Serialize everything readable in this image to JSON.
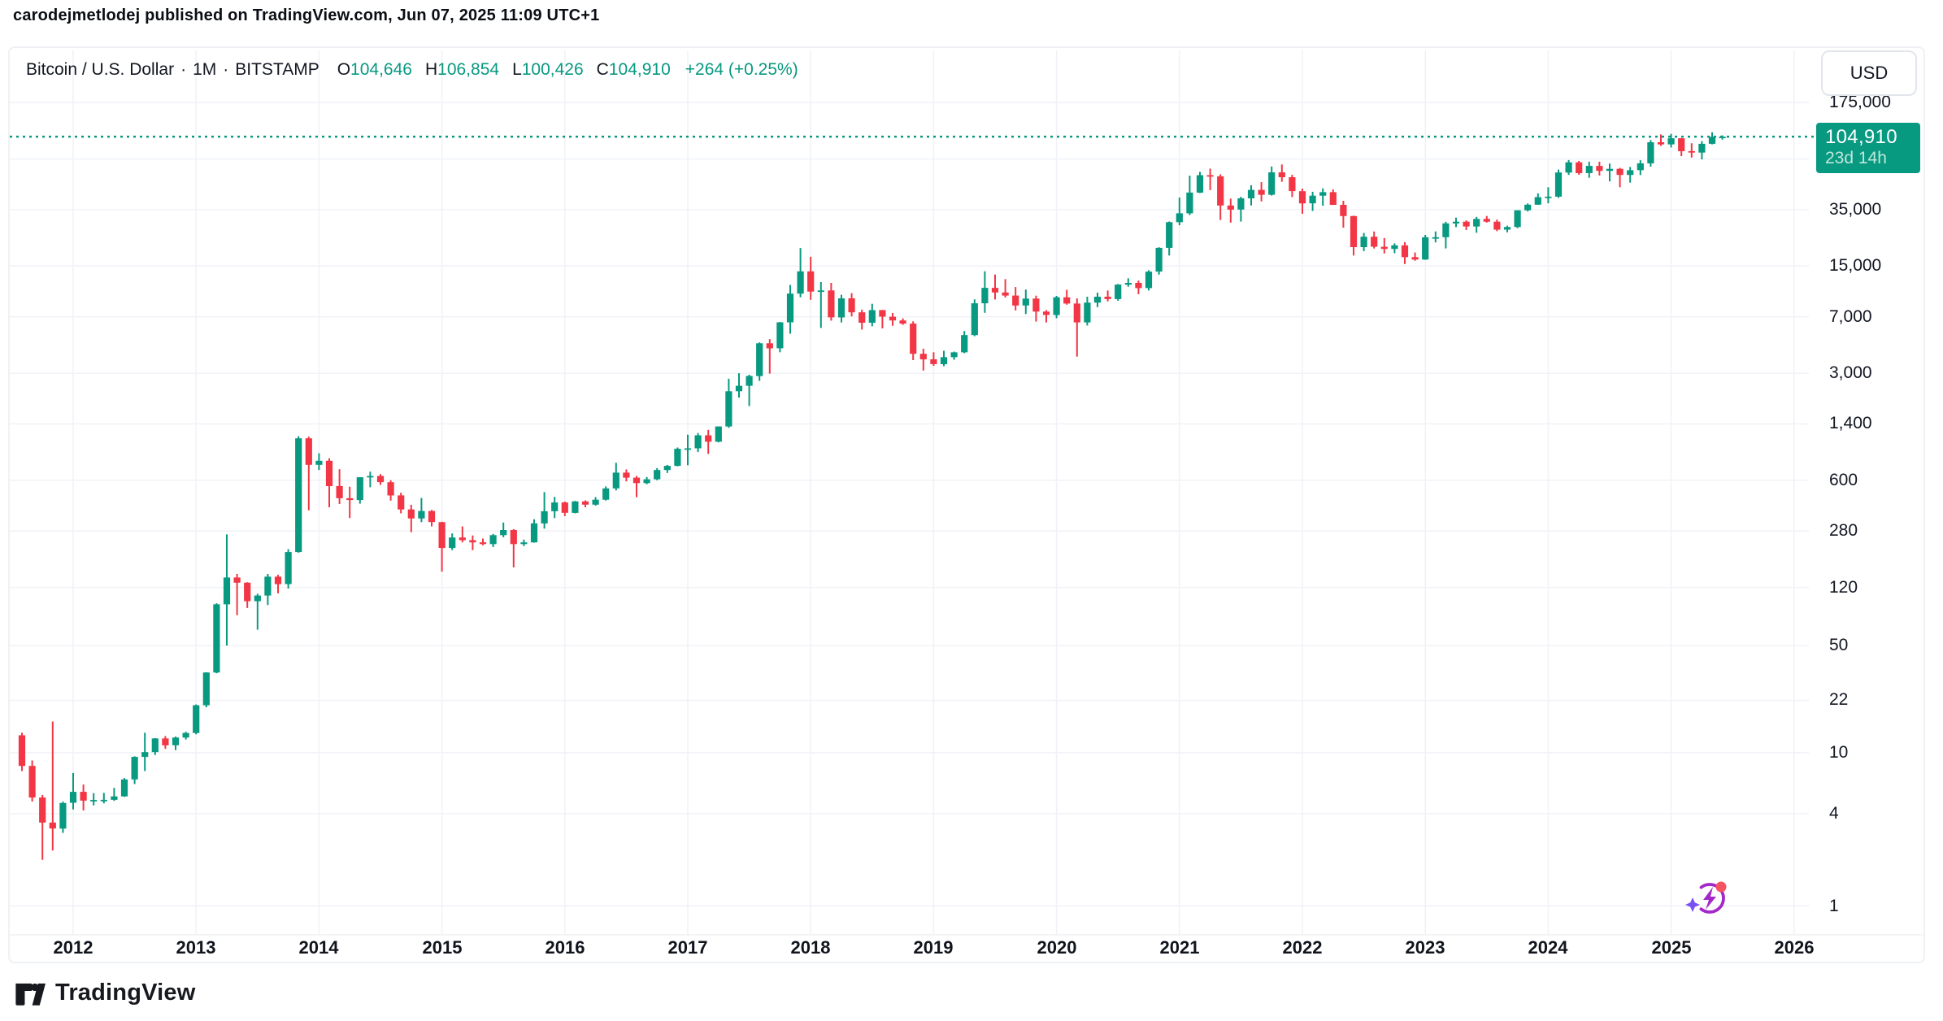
{
  "header": {
    "published_line": "carodejmetlodej published on TradingView.com, Jun 07, 2025 11:09 UTC+1"
  },
  "legend": {
    "symbol_title": "Bitcoin / U.S. Dollar",
    "separator": "·",
    "interval": "1M",
    "exchange": "BITSTAMP",
    "open_label": "O",
    "open_value": "104,646",
    "high_label": "H",
    "high_value": "106,854",
    "low_label": "L",
    "low_value": "100,426",
    "close_label": "C",
    "close_value": "104,910",
    "change": "+264 (+0.25%)"
  },
  "price_axis": {
    "currency_button": "USD",
    "ticks": [
      {
        "label": "175,000",
        "price": 175000
      },
      {
        "label": "35,000",
        "price": 35000
      },
      {
        "label": "15,000",
        "price": 15000
      },
      {
        "label": "7,000",
        "price": 7000
      },
      {
        "label": "3,000",
        "price": 3000
      },
      {
        "label": "1,400",
        "price": 1400
      },
      {
        "label": "600",
        "price": 600
      },
      {
        "label": "280",
        "price": 280
      },
      {
        "label": "120",
        "price": 120
      },
      {
        "label": "50",
        "price": 50
      },
      {
        "label": "22",
        "price": 22
      },
      {
        "label": "10",
        "price": 10
      },
      {
        "label": "4",
        "price": 4
      },
      {
        "label": "1",
        "price": 1
      }
    ],
    "last_price_label": "104,910",
    "countdown": "23d 14h"
  },
  "time_axis": {
    "years": [
      2012,
      2013,
      2014,
      2015,
      2016,
      2017,
      2018,
      2019,
      2020,
      2021,
      2022,
      2023,
      2024,
      2025,
      2026
    ]
  },
  "footer": {
    "brand": "TradingView"
  },
  "colors": {
    "up": "#089981",
    "down": "#F23645",
    "accent": "#089981",
    "axis_text": "#131722",
    "grid": "#f0f2f7",
    "badge_bg": "#089981",
    "badge_countdown": "#bfe7dc",
    "dotted_line": "#089981"
  },
  "chart_data": {
    "type": "candlestick",
    "title": "Bitcoin / U.S. Dollar",
    "symbol": "BTCUSD",
    "exchange": "BITSTAMP",
    "timeframe": "1M",
    "y_scale": "log",
    "currency": "USD",
    "start_month": "2011-08",
    "last_close": 104910,
    "y_ticks": [
      175000,
      35000,
      15000,
      7000,
      3000,
      1400,
      600,
      280,
      120,
      50,
      22,
      10,
      4,
      1
    ],
    "y_gridline_prices": [
      175000,
      75000,
      35000,
      15000,
      7000,
      3000,
      1400,
      600,
      280,
      120,
      50,
      22,
      10,
      4,
      1
    ],
    "x_years": [
      2012,
      2013,
      2014,
      2015,
      2016,
      2017,
      2018,
      2019,
      2020,
      2021,
      2022,
      2023,
      2024,
      2025,
      2026
    ],
    "candles_format": [
      "open",
      "high",
      "low",
      "close"
    ],
    "candles": [
      [
        13.0,
        13.5,
        7.6,
        8.2
      ],
      [
        8.2,
        8.9,
        4.8,
        5.1
      ],
      [
        5.1,
        5.3,
        2.0,
        3.5
      ],
      [
        3.5,
        16.0,
        2.3,
        3.2
      ],
      [
        3.2,
        4.8,
        3.0,
        4.7
      ],
      [
        4.72,
        7.38,
        4.27,
        5.56
      ],
      [
        5.56,
        6.2,
        4.2,
        4.87
      ],
      [
        4.87,
        5.45,
        4.53,
        4.92
      ],
      [
        4.92,
        5.47,
        4.68,
        4.93
      ],
      [
        4.93,
        5.9,
        4.85,
        5.19
      ],
      [
        5.19,
        6.83,
        5.15,
        6.7
      ],
      [
        6.7,
        9.48,
        6.25,
        9.4
      ],
      [
        9.4,
        13.5,
        7.6,
        10.1
      ],
      [
        10.1,
        12.48,
        9.66,
        12.4
      ],
      [
        12.4,
        12.85,
        10.6,
        11.18
      ],
      [
        11.18,
        12.75,
        10.4,
        12.56
      ],
      [
        12.56,
        13.7,
        12.2,
        13.45
      ],
      [
        13.45,
        20.65,
        13.2,
        20.41
      ],
      [
        20.41,
        33.5,
        19.8,
        33.38
      ],
      [
        33.38,
        94.5,
        33.0,
        93.03
      ],
      [
        93.03,
        266.0,
        50.1,
        139.23
      ],
      [
        139.23,
        146.93,
        79.0,
        128.8
      ],
      [
        128.8,
        129.78,
        88.05,
        97.5
      ],
      [
        97.5,
        109.0,
        63.53,
        106.21
      ],
      [
        106.21,
        147.0,
        92.0,
        141.0
      ],
      [
        141.0,
        145.0,
        109.71,
        126.0
      ],
      [
        126.0,
        213.0,
        118.0,
        204.0
      ],
      [
        204.0,
        1163.0,
        202.0,
        1127.0
      ],
      [
        1127.0,
        1156.0,
        382.0,
        757.0
      ],
      [
        757,
        900,
        700,
        805
      ],
      [
        805,
        835,
        400,
        550
      ],
      [
        550,
        709,
        420,
        458
      ],
      [
        458,
        545,
        340,
        446
      ],
      [
        446,
        629,
        422,
        628
      ],
      [
        628,
        683,
        540,
        640
      ],
      [
        640,
        658,
        560,
        583
      ],
      [
        583,
        600,
        442,
        478
      ],
      [
        478,
        498,
        365,
        387
      ],
      [
        387,
        415,
        275,
        338
      ],
      [
        338,
        460,
        320,
        378
      ],
      [
        378,
        384,
        300,
        320
      ],
      [
        320,
        322,
        152,
        217
      ],
      [
        217,
        270,
        210,
        254
      ],
      [
        254,
        300,
        236,
        244
      ],
      [
        244,
        262,
        210,
        236
      ],
      [
        236,
        250,
        226,
        230
      ],
      [
        230,
        268,
        220,
        263
      ],
      [
        263,
        318,
        255,
        284
      ],
      [
        284,
        288,
        162,
        230
      ],
      [
        230,
        246,
        223,
        236
      ],
      [
        236,
        334,
        235,
        314
      ],
      [
        314,
        502,
        290,
        377
      ],
      [
        377,
        467,
        340,
        430
      ],
      [
        430,
        436,
        350,
        368
      ],
      [
        368,
        440,
        365,
        437
      ],
      [
        437,
        444,
        400,
        416
      ],
      [
        416,
        466,
        410,
        448
      ],
      [
        448,
        547,
        442,
        531
      ],
      [
        531,
        780,
        515,
        673
      ],
      [
        673,
        706,
        590,
        624
      ],
      [
        624,
        640,
        465,
        575
      ],
      [
        575,
        630,
        565,
        609
      ],
      [
        609,
        720,
        600,
        700
      ],
      [
        700,
        755,
        670,
        745
      ],
      [
        745,
        982,
        740,
        963
      ],
      [
        963,
        1191,
        752,
        970
      ],
      [
        970,
        1220,
        918,
        1179
      ],
      [
        1179,
        1280,
        891,
        1071
      ],
      [
        1071,
        1347,
        1060,
        1347
      ],
      [
        1347,
        2760,
        1320,
        2286
      ],
      [
        2286,
        3000,
        2076,
        2480
      ],
      [
        2480,
        2930,
        1830,
        2875
      ],
      [
        2875,
        4765,
        2670,
        4703
      ],
      [
        4703,
        5000,
        2980,
        4360
      ],
      [
        4360,
        6470,
        4110,
        6440
      ],
      [
        6440,
        11300,
        5430,
        9916
      ],
      [
        9916,
        19666,
        9380,
        13850
      ],
      [
        13850,
        17234,
        9035,
        10221
      ],
      [
        10221,
        11786,
        5920,
        10397
      ],
      [
        10397,
        11650,
        6600,
        6938
      ],
      [
        6938,
        9745,
        6425,
        9240
      ],
      [
        9240,
        9990,
        7040,
        7485
      ],
      [
        7485,
        7790,
        5780,
        6404
      ],
      [
        6404,
        8507,
        6070,
        7735
      ],
      [
        7735,
        7760,
        5880,
        7011
      ],
      [
        7011,
        7410,
        6120,
        6626
      ],
      [
        6626,
        6830,
        6200,
        6317
      ],
      [
        6317,
        6540,
        3652,
        4017
      ],
      [
        4017,
        4330,
        3122,
        3693
      ],
      [
        3693,
        4110,
        3350,
        3437
      ],
      [
        3437,
        4200,
        3330,
        3816
      ],
      [
        3816,
        4150,
        3670,
        4105
      ],
      [
        4105,
        5650,
        4050,
        5320
      ],
      [
        5320,
        9090,
        5230,
        8574
      ],
      [
        8574,
        13880,
        7430,
        10817
      ],
      [
        10817,
        13200,
        9080,
        10085
      ],
      [
        10085,
        12325,
        9350,
        9630
      ],
      [
        9630,
        10950,
        7700,
        8293
      ],
      [
        8293,
        10540,
        7293,
        9199
      ],
      [
        9199,
        9620,
        6515,
        7569
      ],
      [
        7569,
        7740,
        6430,
        7196
      ],
      [
        7196,
        9580,
        6850,
        9388
      ],
      [
        9388,
        10500,
        8400,
        8543
      ],
      [
        8543,
        9220,
        3850,
        6438
      ],
      [
        6438,
        9460,
        6140,
        8658
      ],
      [
        8658,
        10067,
        8100,
        9461
      ],
      [
        9461,
        10380,
        8830,
        9137
      ],
      [
        9137,
        11450,
        8900,
        11351
      ],
      [
        11351,
        12486,
        11000,
        11655
      ],
      [
        11655,
        12050,
        9825,
        10776
      ],
      [
        10776,
        14100,
        10380,
        13797
      ],
      [
        13797,
        19888,
        13200,
        19713
      ],
      [
        19713,
        29300,
        17580,
        28996
      ],
      [
        28996,
        42000,
        27700,
        33141
      ],
      [
        33141,
        58350,
        32300,
        45240
      ],
      [
        45240,
        61800,
        44950,
        58800
      ],
      [
        58800,
        64863,
        46930,
        57798
      ],
      [
        57798,
        59500,
        30000,
        37279
      ],
      [
        37279,
        41330,
        28800,
        35045
      ],
      [
        35045,
        42448,
        29278,
        41495
      ],
      [
        41495,
        50500,
        37300,
        47130
      ],
      [
        47130,
        52920,
        39600,
        43790
      ],
      [
        43790,
        66999,
        43283,
        61320
      ],
      [
        61320,
        69000,
        53256,
        56987
      ],
      [
        56987,
        59040,
        42333,
        46217
      ],
      [
        46217,
        47990,
        32950,
        38491
      ],
      [
        38491,
        45821,
        34322,
        43193
      ],
      [
        43193,
        48240,
        37155,
        45539
      ],
      [
        45539,
        47448,
        37585,
        37645
      ],
      [
        37645,
        40023,
        26700,
        31793
      ],
      [
        31793,
        31980,
        17593,
        19942
      ],
      [
        19942,
        24668,
        18781,
        23307
      ],
      [
        23307,
        25211,
        19526,
        20050
      ],
      [
        20050,
        22850,
        18125,
        19426
      ],
      [
        19426,
        21085,
        18190,
        20492
      ],
      [
        20492,
        21480,
        15460,
        17168
      ],
      [
        17168,
        18385,
        16256,
        16542
      ],
      [
        16542,
        23960,
        16490,
        23130
      ],
      [
        23130,
        25250,
        21400,
        23142
      ],
      [
        23142,
        29184,
        19550,
        28473
      ],
      [
        28473,
        31050,
        26940,
        29233
      ],
      [
        29233,
        29820,
        25810,
        27210
      ],
      [
        27210,
        31430,
        24750,
        30472
      ],
      [
        30472,
        31850,
        28850,
        29230
      ],
      [
        29230,
        30180,
        25350,
        25932
      ],
      [
        25932,
        27480,
        24900,
        26962
      ],
      [
        26962,
        34700,
        26540,
        34657
      ],
      [
        34657,
        38440,
        34100,
        37719
      ],
      [
        37719,
        44730,
        37615,
        42265
      ],
      [
        42265,
        48970,
        38505,
        42580
      ],
      [
        42580,
        63970,
        41880,
        61169
      ],
      [
        61169,
        73794,
        59005,
        71334
      ],
      [
        71334,
        72800,
        59120,
        60637
      ],
      [
        60637,
        71950,
        56555,
        67530
      ],
      [
        67530,
        71997,
        58500,
        62673
      ],
      [
        62673,
        69987,
        53550,
        64628
      ],
      [
        64628,
        65600,
        49050,
        58970
      ],
      [
        58970,
        66500,
        52550,
        63330
      ],
      [
        63330,
        73620,
        58900,
        70216
      ],
      [
        70216,
        99655,
        66835,
        96450
      ],
      [
        96450,
        108365,
        91317,
        93429
      ],
      [
        93429,
        109356,
        89164,
        102405
      ],
      [
        102405,
        102780,
        78258,
        84349
      ],
      [
        84349,
        95043,
        76606,
        82549
      ],
      [
        82549,
        97900,
        74508,
        94207
      ],
      [
        94207,
        111980,
        93365,
        104640
      ],
      [
        104646,
        106854,
        100426,
        104910
      ]
    ]
  }
}
